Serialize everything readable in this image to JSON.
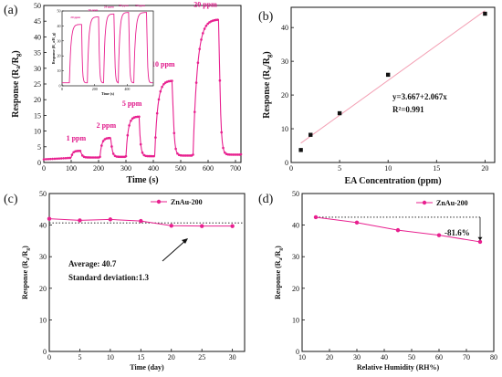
{
  "colors": {
    "series": "#e8208f",
    "inset": "#e8208f",
    "axis": "#111111",
    "fit": "#f3a0b4",
    "marker": "#111111"
  },
  "chart_data": [
    {
      "panel": "(a)",
      "type": "line",
      "xlabel": "Time (s)",
      "ylabel": "Response (R_a/R_g)",
      "xlim": [
        0,
        720
      ],
      "ylim": [
        0,
        50
      ],
      "xticks": [
        0,
        100,
        200,
        300,
        400,
        500,
        600,
        700
      ],
      "yticks": [
        0,
        5,
        10,
        15,
        20,
        25,
        30,
        35,
        40,
        45,
        50
      ],
      "pulses": [
        {
          "label": "1 ppm",
          "start": 100,
          "end": 135,
          "peak": 3.7,
          "base": 1.6
        },
        {
          "label": "2 ppm",
          "start": 205,
          "end": 245,
          "peak": 7.8,
          "base": 1.8
        },
        {
          "label": "5 ppm",
          "start": 300,
          "end": 348,
          "peak": 14.6,
          "base": 2.0
        },
        {
          "label": "10 ppm",
          "start": 405,
          "end": 470,
          "peak": 26.0,
          "base": 2.2
        },
        {
          "label": "20 ppm",
          "start": 545,
          "end": 640,
          "peak": 45.5,
          "base": 2.5
        }
      ],
      "inset": {
        "type": "line",
        "xlabel": "Time (s)",
        "ylabel": "Response (R_a/R_g)",
        "xlim": [
          0,
          560
        ],
        "ylim": [
          0,
          50
        ],
        "xticks": [
          0,
          200,
          400
        ],
        "yticks": [
          0,
          10,
          20,
          30,
          40,
          50
        ],
        "pulses": [
          {
            "label": "20 ppm",
            "start": 45,
            "end": 120,
            "peak": 41
          },
          {
            "label": "20 ppm",
            "start": 155,
            "end": 225,
            "peak": 46
          },
          {
            "label": "20 ppm",
            "start": 255,
            "end": 320,
            "peak": 48
          },
          {
            "label": "20 ppm",
            "start": 345,
            "end": 410,
            "peak": 49
          },
          {
            "label": "20 ppm",
            "start": 440,
            "end": 520,
            "peak": 49
          }
        ]
      }
    },
    {
      "panel": "(b)",
      "type": "scatter",
      "xlabel": "EA Concentration (ppm)",
      "ylabel": "Response (R_a/R_g)",
      "xlim": [
        0,
        21
      ],
      "ylim": [
        0,
        46
      ],
      "xticks": [
        0,
        5,
        10,
        15,
        20
      ],
      "yticks": [
        0,
        10,
        20,
        30,
        40
      ],
      "x": [
        1,
        2,
        5,
        10,
        20
      ],
      "y": [
        3.7,
        8.2,
        14.6,
        26.0,
        44.1
      ],
      "fit": {
        "intercept": 3.667,
        "slope": 2.067,
        "x_range": [
          1,
          20
        ]
      },
      "equation": "y=3.667+2.067x",
      "r2": "R²=0.991"
    },
    {
      "panel": "(c)",
      "type": "line",
      "xlabel": "Time (day)",
      "ylabel": "Response (R_a/R_g)",
      "xlim": [
        0,
        32
      ],
      "ylim": [
        0,
        50
      ],
      "xticks": [
        0,
        5,
        10,
        15,
        20,
        25,
        30
      ],
      "yticks": [
        0,
        10,
        20,
        30,
        40,
        50
      ],
      "series": [
        {
          "name": "ZnAu-200",
          "x": [
            0,
            5,
            10,
            15,
            20,
            25,
            30
          ],
          "y": [
            42.0,
            41.5,
            41.8,
            41.3,
            39.8,
            39.7,
            39.7
          ]
        }
      ],
      "average_line": 40.7,
      "annotation_avg": "Average: 40.7",
      "annotation_sd": "Standard deviation:1.3"
    },
    {
      "panel": "(d)",
      "type": "line",
      "xlabel": "Relative Humidity (RH%)",
      "ylabel": "Response (R_a/R_g)",
      "xlim": [
        10,
        80
      ],
      "ylim": [
        0,
        50
      ],
      "xticks": [
        10,
        20,
        30,
        40,
        50,
        60,
        70,
        80
      ],
      "yticks": [
        0,
        10,
        20,
        30,
        40,
        50
      ],
      "series": [
        {
          "name": "ZnAu-200",
          "x": [
            15,
            30,
            45,
            60,
            75
          ],
          "y": [
            42.5,
            40.8,
            38.4,
            36.8,
            34.7
          ]
        }
      ],
      "reference_line": 42.5,
      "annotation": "-81.6%"
    }
  ]
}
